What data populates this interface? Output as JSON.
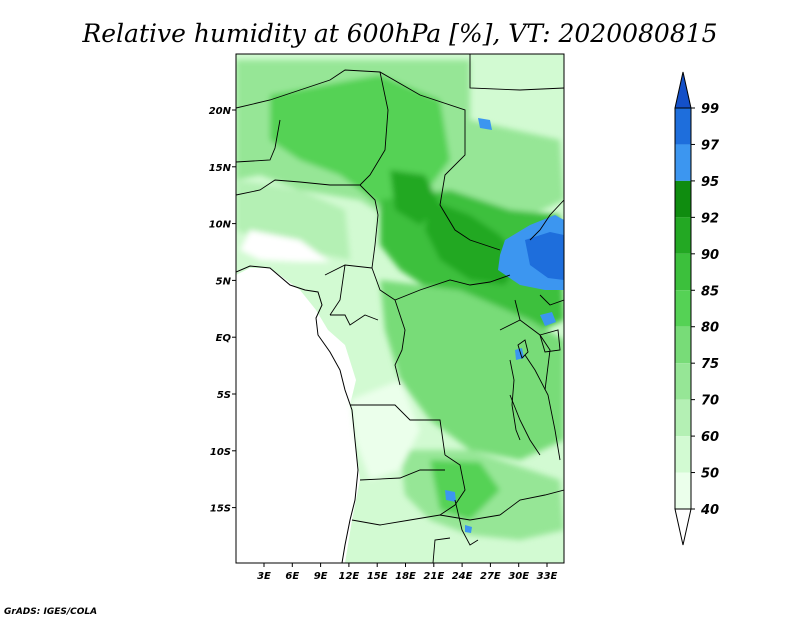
{
  "title": "Relative humidity at 600hPa [%], VT: 2020080815",
  "credit": "GrADS: IGES/COLA",
  "axes": {
    "lon_ticks": [
      "3E",
      "6E",
      "9E",
      "12E",
      "15E",
      "18E",
      "21E",
      "24E",
      "27E",
      "30E",
      "33E"
    ],
    "lat_ticks": [
      "20N",
      "15N",
      "10N",
      "5N",
      "EQ",
      "5S",
      "10S",
      "15S"
    ]
  },
  "colorbar": {
    "levels": [
      "99",
      "97",
      "95",
      "92",
      "90",
      "85",
      "80",
      "75",
      "70",
      "60",
      "50",
      "40"
    ],
    "colors": [
      "#1450c8",
      "#1e6edc",
      "#3c96f0",
      "#0f8c0f",
      "#23a823",
      "#3cc03c",
      "#55d255",
      "#78dc78",
      "#96e696",
      "#b4f0b4",
      "#d2fad2",
      "#ebffeb"
    ]
  },
  "field_colors": {
    "ocean": "#ffffff",
    "border": "#000000"
  }
}
